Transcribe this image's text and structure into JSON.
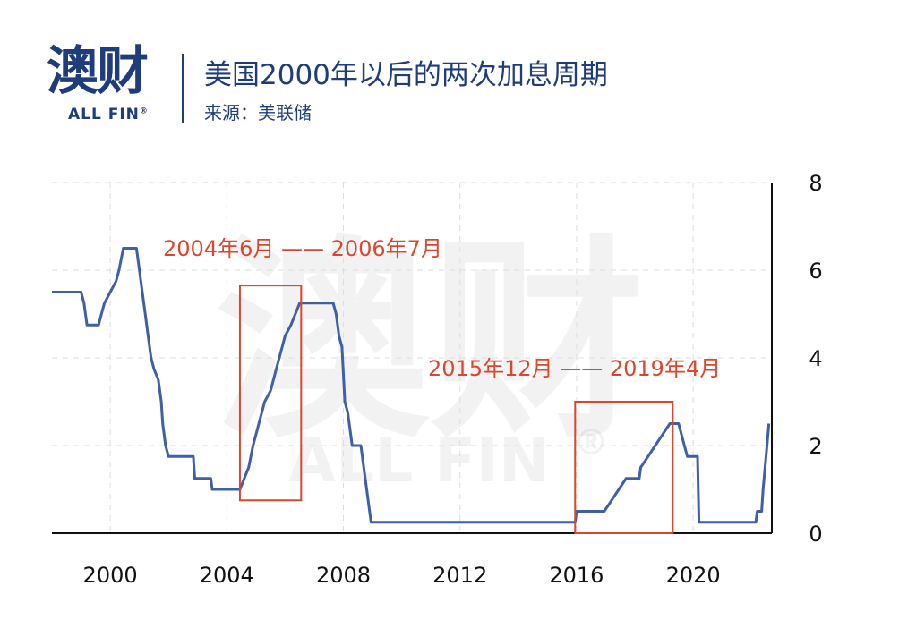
{
  "header": {
    "logo_cn": "澳财",
    "logo_en": "ALL FIN",
    "logo_mark": "®",
    "title": "美国2000年以后的两次加息周期",
    "source": "来源：美联储"
  },
  "watermark": {
    "cn": "澳财",
    "en": "ALL FIN",
    "mark": "®"
  },
  "colors": {
    "brand": "#1f3d7a",
    "line": "#3f5fa8",
    "annotation": "#e0452c",
    "text": "#111111"
  },
  "chart_data": {
    "type": "line",
    "title": "美国2000年以后的两次加息周期",
    "xlabel": "",
    "ylabel": "",
    "xlim": [
      1998,
      2022.7
    ],
    "ylim": [
      0,
      8
    ],
    "x_ticks": [
      "2000",
      "2004",
      "2008",
      "2012",
      "2016",
      "2020"
    ],
    "y_ticks": [
      "0",
      "2",
      "4",
      "6",
      "8"
    ],
    "y_axis_side": "right",
    "grid": true,
    "series": [
      {
        "name": "",
        "points": [
          [
            1998.0,
            5.5
          ],
          [
            1999.0,
            5.5
          ],
          [
            1999.1,
            5.25
          ],
          [
            1999.2,
            4.75
          ],
          [
            1999.6,
            4.75
          ],
          [
            1999.7,
            5.0
          ],
          [
            1999.8,
            5.25
          ],
          [
            2000.0,
            5.5
          ],
          [
            2000.2,
            5.75
          ],
          [
            2000.3,
            6.0
          ],
          [
            2000.45,
            6.5
          ],
          [
            2000.9,
            6.5
          ],
          [
            2001.0,
            6.0
          ],
          [
            2001.1,
            5.5
          ],
          [
            2001.2,
            5.0
          ],
          [
            2001.3,
            4.5
          ],
          [
            2001.4,
            4.0
          ],
          [
            2001.5,
            3.75
          ],
          [
            2001.65,
            3.5
          ],
          [
            2001.75,
            3.0
          ],
          [
            2001.8,
            2.5
          ],
          [
            2001.9,
            2.0
          ],
          [
            2002.0,
            1.75
          ],
          [
            2002.85,
            1.75
          ],
          [
            2002.9,
            1.25
          ],
          [
            2003.45,
            1.25
          ],
          [
            2003.5,
            1.0
          ],
          [
            2004.45,
            1.0
          ],
          [
            2004.6,
            1.25
          ],
          [
            2004.75,
            1.5
          ],
          [
            2004.9,
            2.0
          ],
          [
            2005.1,
            2.5
          ],
          [
            2005.3,
            3.0
          ],
          [
            2005.5,
            3.25
          ],
          [
            2005.6,
            3.5
          ],
          [
            2005.7,
            3.75
          ],
          [
            2005.8,
            4.0
          ],
          [
            2006.0,
            4.5
          ],
          [
            2006.2,
            4.75
          ],
          [
            2006.35,
            5.0
          ],
          [
            2006.5,
            5.25
          ],
          [
            2007.65,
            5.25
          ],
          [
            2007.75,
            5.0
          ],
          [
            2007.85,
            4.5
          ],
          [
            2007.95,
            4.25
          ],
          [
            2008.05,
            3.0
          ],
          [
            2008.15,
            2.75
          ],
          [
            2008.3,
            2.0
          ],
          [
            2008.6,
            2.0
          ],
          [
            2008.8,
            1.0
          ],
          [
            2008.95,
            0.25
          ],
          [
            2015.95,
            0.25
          ],
          [
            2016.0,
            0.5
          ],
          [
            2016.95,
            0.5
          ],
          [
            2017.2,
            0.75
          ],
          [
            2017.45,
            1.0
          ],
          [
            2017.7,
            1.25
          ],
          [
            2018.15,
            1.25
          ],
          [
            2018.2,
            1.5
          ],
          [
            2018.45,
            1.75
          ],
          [
            2018.7,
            2.0
          ],
          [
            2018.95,
            2.25
          ],
          [
            2019.2,
            2.5
          ],
          [
            2019.5,
            2.5
          ],
          [
            2019.6,
            2.25
          ],
          [
            2019.7,
            2.0
          ],
          [
            2019.8,
            1.75
          ],
          [
            2020.15,
            1.75
          ],
          [
            2020.2,
            0.25
          ],
          [
            2022.15,
            0.25
          ],
          [
            2022.2,
            0.5
          ],
          [
            2022.35,
            0.5
          ],
          [
            2022.4,
            1.0
          ],
          [
            2022.5,
            1.75
          ],
          [
            2022.6,
            2.5
          ]
        ]
      }
    ],
    "annotations": [
      {
        "label": "2004年6月 —— 2006年7月",
        "x_range": [
          2004.45,
          2006.55
        ],
        "y_range": [
          0.75,
          5.65
        ]
      },
      {
        "label": "2015年12月 —— 2019年4月",
        "x_range": [
          2015.95,
          2019.3
        ],
        "y_range": [
          0,
          3.0
        ]
      }
    ]
  }
}
